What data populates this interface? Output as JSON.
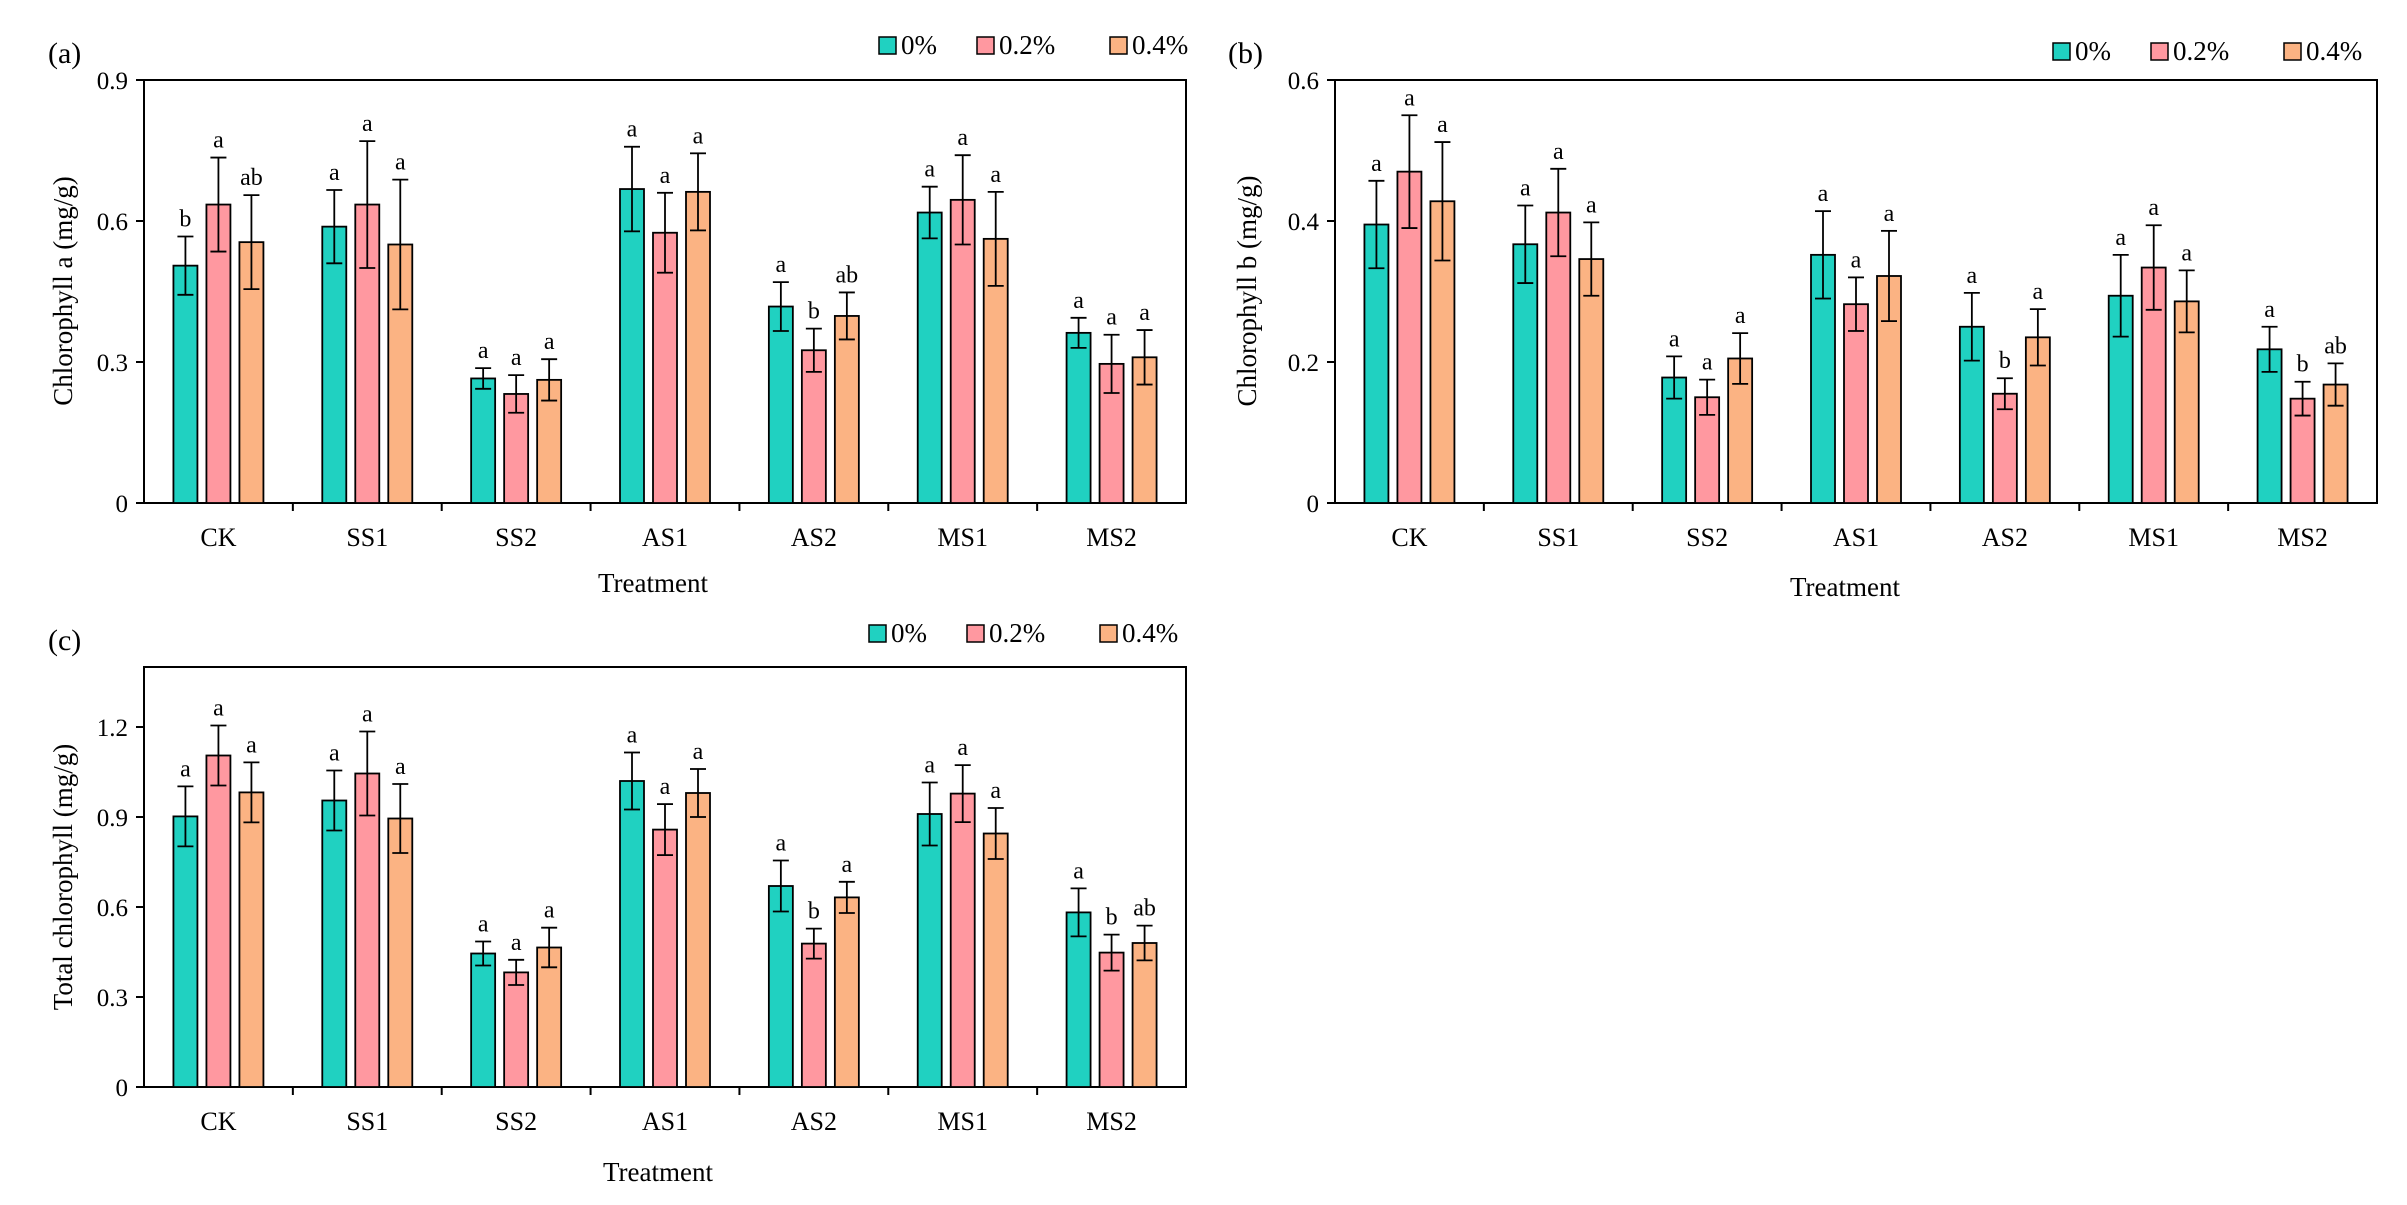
{
  "treatments": [
    "CK",
    "SS1",
    "SS2",
    "AS1",
    "AS2",
    "MS1",
    "MS2"
  ],
  "legend": {
    "items": [
      {
        "label": "0%",
        "color": "#20d1c1"
      },
      {
        "label": "0.2%",
        "color": "#ff98a0"
      },
      {
        "label": "0.4%",
        "color": "#fbb383"
      }
    ]
  },
  "chart_data": [
    {
      "type": "bar",
      "panel": "(a)",
      "xlabel": "Treatment",
      "ylabel": "Chlorophyll a (mg/g)",
      "ylim": [
        0,
        0.9
      ],
      "yticks": [
        "0",
        "0.3",
        "0.6",
        "0.9"
      ],
      "grid": false,
      "legend_position": "top-right",
      "categories": [
        "CK",
        "SS1",
        "SS2",
        "AS1",
        "AS2",
        "MS1",
        "MS2"
      ],
      "series": [
        {
          "name": "0%",
          "values": [
            0.505,
            0.588,
            0.265,
            0.668,
            0.418,
            0.618,
            0.362
          ],
          "errors": [
            0.062,
            0.078,
            0.022,
            0.09,
            0.052,
            0.055,
            0.032
          ],
          "letters": [
            "b",
            "a",
            "a",
            "a",
            "a",
            "a",
            "a"
          ]
        },
        {
          "name": "0.2%",
          "values": [
            0.635,
            0.635,
            0.232,
            0.575,
            0.325,
            0.645,
            0.296
          ],
          "errors": [
            0.1,
            0.135,
            0.04,
            0.085,
            0.046,
            0.095,
            0.062
          ],
          "letters": [
            "a",
            "a",
            "a",
            "a",
            "b",
            "a",
            "a"
          ]
        },
        {
          "name": "0.4%",
          "values": [
            0.555,
            0.55,
            0.262,
            0.662,
            0.398,
            0.562,
            0.31
          ],
          "errors": [
            0.1,
            0.138,
            0.044,
            0.082,
            0.05,
            0.1,
            0.058
          ],
          "letters": [
            "ab",
            "a",
            "a",
            "a",
            "ab",
            "a",
            "a"
          ]
        }
      ]
    },
    {
      "type": "bar",
      "panel": "(b)",
      "xlabel": "Treatment",
      "ylabel": "Chlorophyll b (mg/g)",
      "ylim": [
        0,
        0.6
      ],
      "yticks": [
        "0",
        "0.2",
        "0.4",
        "0.6"
      ],
      "grid": false,
      "legend_position": "top-right",
      "categories": [
        "CK",
        "SS1",
        "SS2",
        "AS1",
        "AS2",
        "MS1",
        "MS2"
      ],
      "series": [
        {
          "name": "0%",
          "values": [
            0.395,
            0.367,
            0.178,
            0.352,
            0.25,
            0.294,
            0.218
          ],
          "errors": [
            0.062,
            0.055,
            0.03,
            0.062,
            0.048,
            0.058,
            0.032
          ],
          "letters": [
            "a",
            "a",
            "a",
            "a",
            "a",
            "a",
            "a"
          ]
        },
        {
          "name": "0.2%",
          "values": [
            0.47,
            0.412,
            0.15,
            0.282,
            0.155,
            0.334,
            0.148
          ],
          "errors": [
            0.08,
            0.062,
            0.025,
            0.038,
            0.022,
            0.06,
            0.024
          ],
          "letters": [
            "a",
            "a",
            "a",
            "a",
            "b",
            "a",
            "b"
          ]
        },
        {
          "name": "0.4%",
          "values": [
            0.428,
            0.346,
            0.205,
            0.322,
            0.235,
            0.286,
            0.168
          ],
          "errors": [
            0.084,
            0.052,
            0.036,
            0.064,
            0.04,
            0.044,
            0.03
          ],
          "letters": [
            "a",
            "a",
            "a",
            "a",
            "a",
            "a",
            "ab"
          ]
        }
      ]
    },
    {
      "type": "bar",
      "panel": "(c)",
      "xlabel": "Treatment",
      "ylabel": "Total chlorophyll (mg/g)",
      "ylim": [
        0,
        1.4
      ],
      "yticks": [
        "0",
        "0.3",
        "0.6",
        "0.9",
        "1.2"
      ],
      "grid": false,
      "legend_position": "top-right",
      "categories": [
        "CK",
        "SS1",
        "SS2",
        "AS1",
        "AS2",
        "MS1",
        "MS2"
      ],
      "series": [
        {
          "name": "0%",
          "values": [
            0.902,
            0.955,
            0.445,
            1.02,
            0.67,
            0.91,
            0.582
          ],
          "errors": [
            0.1,
            0.1,
            0.04,
            0.095,
            0.085,
            0.105,
            0.08
          ],
          "letters": [
            "a",
            "a",
            "a",
            "a",
            "a",
            "a",
            "a"
          ]
        },
        {
          "name": "0.2%",
          "values": [
            1.105,
            1.045,
            0.382,
            0.858,
            0.478,
            0.978,
            0.448
          ],
          "errors": [
            0.1,
            0.14,
            0.042,
            0.085,
            0.05,
            0.095,
            0.06
          ],
          "letters": [
            "a",
            "a",
            "a",
            "a",
            "b",
            "a",
            "b"
          ]
        },
        {
          "name": "0.4%",
          "values": [
            0.982,
            0.895,
            0.465,
            0.98,
            0.632,
            0.845,
            0.48
          ],
          "errors": [
            0.1,
            0.115,
            0.066,
            0.08,
            0.052,
            0.085,
            0.058
          ],
          "letters": [
            "a",
            "a",
            "a",
            "a",
            "a",
            "a",
            "ab"
          ]
        }
      ]
    }
  ]
}
